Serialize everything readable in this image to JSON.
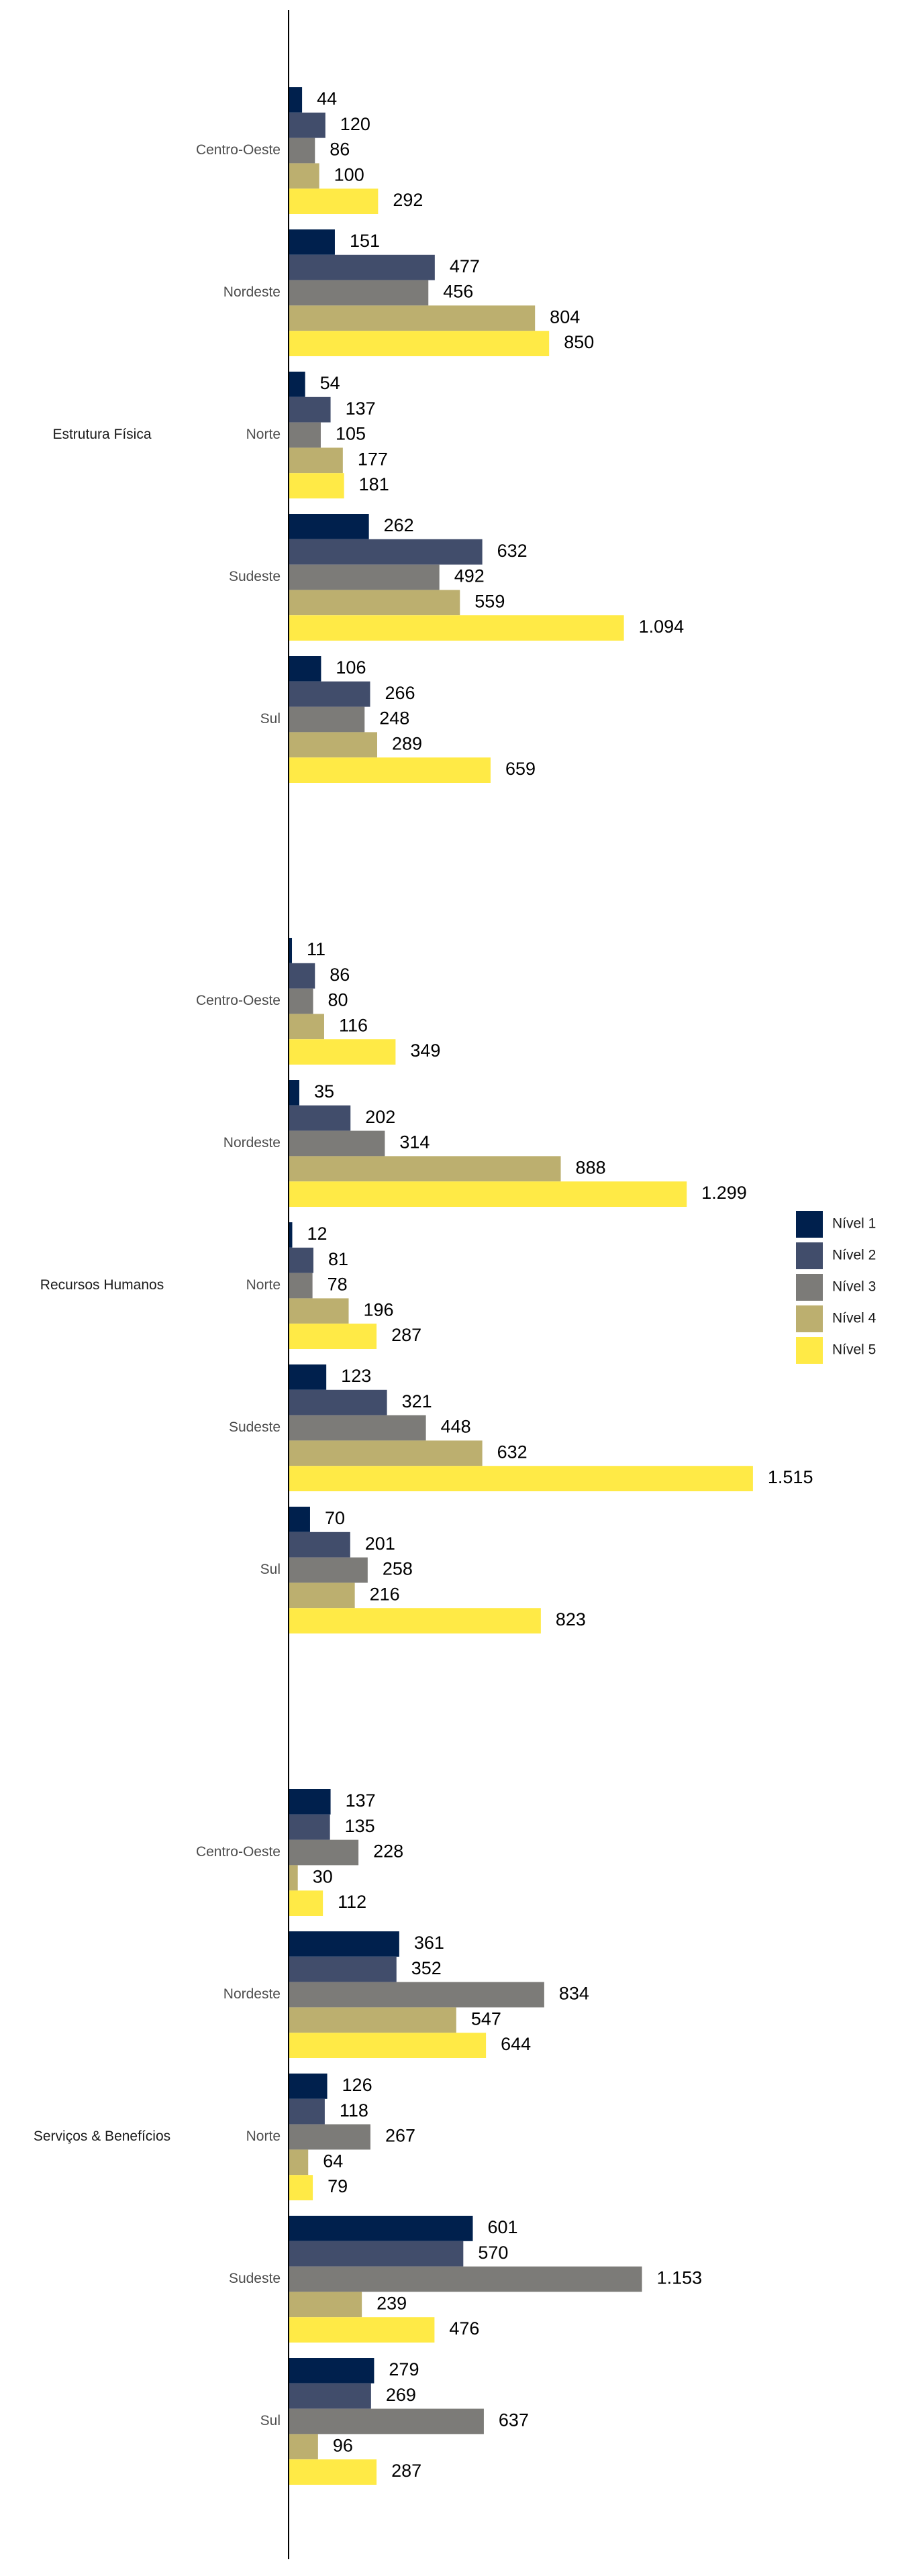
{
  "chart_data": {
    "type": "bar",
    "orientation": "horizontal",
    "legend_placement": "right",
    "grid": false,
    "levels": [
      {
        "name": "Nível 1",
        "color": "#00204D"
      },
      {
        "name": "Nível 2",
        "color": "#414D6B"
      },
      {
        "name": "Nível 3",
        "color": "#7C7B78"
      },
      {
        "name": "Nível 4",
        "color": "#BCAF6F"
      },
      {
        "name": "Nível 5",
        "color": "#FFEA46"
      }
    ],
    "xlim": [
      0,
      1515
    ],
    "groups": [
      {
        "name": "Estrutura Física",
        "regions": [
          {
            "name": "Centro-Oeste",
            "values": [
              44,
              120,
              86,
              100,
              292
            ],
            "labels": [
              "44",
              "120",
              "86",
              "100",
              "292"
            ]
          },
          {
            "name": "Nordeste",
            "values": [
              151,
              477,
              456,
              804,
              850
            ],
            "labels": [
              "151",
              "477",
              "456",
              "804",
              "850"
            ]
          },
          {
            "name": "Norte",
            "values": [
              54,
              137,
              105,
              177,
              181
            ],
            "labels": [
              "54",
              "137",
              "105",
              "177",
              "181"
            ]
          },
          {
            "name": "Sudeste",
            "values": [
              262,
              632,
              492,
              559,
              1094
            ],
            "labels": [
              "262",
              "632",
              "492",
              "559",
              "1.094"
            ]
          },
          {
            "name": "Sul",
            "values": [
              106,
              266,
              248,
              289,
              659
            ],
            "labels": [
              "106",
              "266",
              "248",
              "289",
              "659"
            ]
          }
        ]
      },
      {
        "name": "Recursos Humanos",
        "regions": [
          {
            "name": "Centro-Oeste",
            "values": [
              11,
              86,
              80,
              116,
              349
            ],
            "labels": [
              "11",
              "86",
              "80",
              "116",
              "349"
            ]
          },
          {
            "name": "Nordeste",
            "values": [
              35,
              202,
              314,
              888,
              1299
            ],
            "labels": [
              "35",
              "202",
              "314",
              "888",
              "1.299"
            ]
          },
          {
            "name": "Norte",
            "values": [
              12,
              81,
              78,
              196,
              287
            ],
            "labels": [
              "12",
              "81",
              "78",
              "196",
              "287"
            ]
          },
          {
            "name": "Sudeste",
            "values": [
              123,
              321,
              448,
              632,
              1515
            ],
            "labels": [
              "123",
              "321",
              "448",
              "632",
              "1.515"
            ]
          },
          {
            "name": "Sul",
            "values": [
              70,
              201,
              258,
              216,
              823
            ],
            "labels": [
              "70",
              "201",
              "258",
              "216",
              "823"
            ]
          }
        ]
      },
      {
        "name": "Serviços & Benefícios",
        "regions": [
          {
            "name": "Centro-Oeste",
            "values": [
              137,
              135,
              228,
              30,
              112
            ],
            "labels": [
              "137",
              "135",
              "228",
              "30",
              "112"
            ]
          },
          {
            "name": "Nordeste",
            "values": [
              361,
              352,
              834,
              547,
              644
            ],
            "labels": [
              "361",
              "352",
              "834",
              "547",
              "644"
            ]
          },
          {
            "name": "Norte",
            "values": [
              126,
              118,
              267,
              64,
              79
            ],
            "labels": [
              "126",
              "118",
              "267",
              "64",
              "79"
            ]
          },
          {
            "name": "Sudeste",
            "values": [
              601,
              570,
              1153,
              239,
              476
            ],
            "labels": [
              "601",
              "570",
              "1.153",
              "239",
              "476"
            ]
          },
          {
            "name": "Sul",
            "values": [
              279,
              269,
              637,
              96,
              287
            ],
            "labels": [
              "279",
              "269",
              "637",
              "96",
              "287"
            ]
          }
        ]
      }
    ]
  }
}
